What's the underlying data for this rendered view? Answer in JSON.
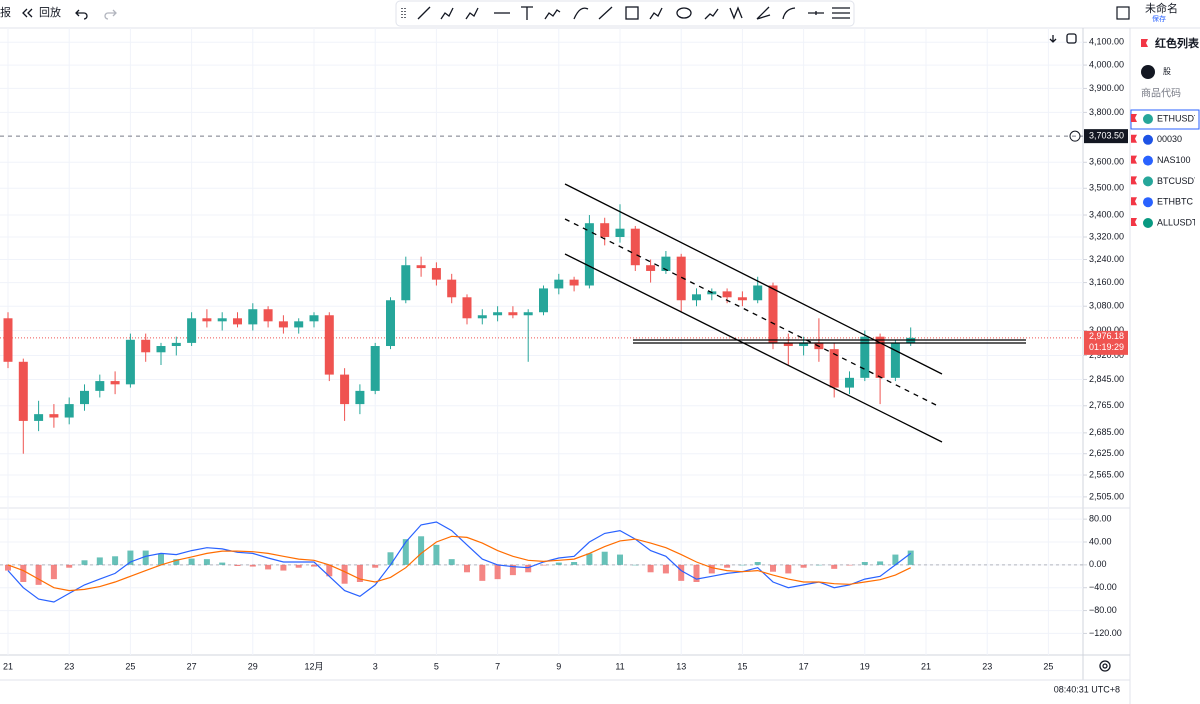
{
  "toolbar": {
    "left": [
      "报",
      "回放"
    ],
    "title": "未命名",
    "save": "保存"
  },
  "watchlist": {
    "title": "红色列表",
    "section": "股",
    "column": "商品代码",
    "symbols": [
      "ETHUSDT",
      "00030",
      "NAS100",
      "BTCUSDT",
      "ETHBTC",
      "ALLUSDT"
    ]
  },
  "status_time": "08:40:31 UTC+8",
  "chart_data": [
    {
      "type": "candlestick",
      "log_scale": true,
      "grid": true,
      "up_color": "#26a69a",
      "down_color": "#ef5350",
      "categories": [
        "21",
        null,
        null,
        null,
        "23",
        null,
        null,
        null,
        "25",
        null,
        null,
        null,
        "27",
        null,
        null,
        null,
        "29",
        null,
        null,
        null,
        "12月",
        null,
        null,
        null,
        "3",
        null,
        null,
        null,
        "5",
        null,
        null,
        null,
        "7",
        null,
        null,
        null,
        "9",
        null,
        null,
        null,
        "11",
        null,
        null,
        null,
        "13",
        null,
        null,
        null,
        "15",
        null,
        null,
        null,
        "17",
        null,
        null,
        null,
        "19",
        null,
        null,
        null,
        "21",
        null,
        null,
        null,
        "23",
        null,
        null,
        null,
        "25",
        null,
        null
      ],
      "open": [
        3040,
        2900,
        2720,
        2740,
        2730,
        2770,
        2810,
        2840,
        2830,
        2970,
        2930,
        2950,
        2960,
        3040,
        3030,
        3040,
        3020,
        3070,
        3030,
        3010,
        3030,
        3050,
        2860,
        2770,
        2810,
        2950,
        3100,
        3220,
        3210,
        3170,
        3110,
        3040,
        3050,
        3060,
        3050,
        3060,
        3140,
        3170,
        3150,
        3370,
        3320,
        3350,
        3220,
        3200,
        3250,
        3100,
        3120,
        3130,
        3110,
        3100,
        3150,
        2960,
        2950,
        2960,
        2940,
        2820,
        2850,
        2980,
        2850,
        2960,
        null,
        null,
        null,
        null,
        null,
        null,
        null,
        null,
        null,
        null,
        null
      ],
      "high": [
        3060,
        2910,
        2780,
        2770,
        2790,
        2830,
        2860,
        2870,
        2990,
        2990,
        2960,
        2980,
        3060,
        3070,
        3060,
        3060,
        3090,
        3080,
        3050,
        3040,
        3060,
        3060,
        2880,
        2830,
        2960,
        3110,
        3250,
        3250,
        3230,
        3190,
        3120,
        3070,
        3080,
        3080,
        3070,
        3150,
        3190,
        3180,
        3400,
        3390,
        3440,
        3360,
        3240,
        3270,
        3260,
        3140,
        3140,
        3140,
        3130,
        3180,
        3160,
        2990,
        2980,
        3040,
        2960,
        2870,
        3000,
        2990,
        2970,
        3010,
        null,
        null,
        null,
        null,
        null,
        null,
        null,
        null,
        null,
        null,
        null
      ],
      "low": [
        2880,
        2625,
        2690,
        2700,
        2710,
        2750,
        2790,
        2800,
        2820,
        2900,
        2890,
        2920,
        2950,
        3010,
        3000,
        3010,
        3000,
        3010,
        2990,
        2990,
        3010,
        2840,
        2720,
        2740,
        2800,
        2940,
        3090,
        3180,
        3150,
        3090,
        3020,
        3020,
        3030,
        3040,
        2900,
        3050,
        3120,
        3130,
        3140,
        3290,
        3300,
        3200,
        3160,
        3190,
        3060,
        3080,
        3100,
        3090,
        3080,
        3090,
        2940,
        2890,
        2920,
        2900,
        2790,
        2800,
        2840,
        2770,
        2840,
        2950,
        null,
        null,
        null,
        null,
        null,
        null,
        null,
        null,
        null,
        null,
        null
      ],
      "close": [
        2900,
        2720,
        2740,
        2730,
        2770,
        2810,
        2840,
        2830,
        2970,
        2930,
        2950,
        2960,
        3040,
        3030,
        3040,
        3020,
        3070,
        3030,
        3010,
        3030,
        3050,
        2860,
        2770,
        2810,
        2950,
        3100,
        3220,
        3210,
        3170,
        3110,
        3040,
        3050,
        3060,
        3050,
        3060,
        3140,
        3170,
        3150,
        3370,
        3320,
        3350,
        3220,
        3200,
        3250,
        3100,
        3120,
        3130,
        3110,
        3100,
        3150,
        2960,
        2950,
        2960,
        2940,
        2820,
        2850,
        2980,
        2850,
        2960,
        2976.18,
        null,
        null,
        null,
        null,
        null,
        null,
        null,
        null,
        null,
        null,
        null
      ],
      "ylim": [
        2475,
        4155
      ],
      "yticks": [
        {
          "value": 4100,
          "label": "4,100.00"
        },
        {
          "value": 4000,
          "label": "4,000.00"
        },
        {
          "value": 3900,
          "label": "3,900.00"
        },
        {
          "value": 3800,
          "label": "3,800.00"
        },
        {
          "value": 3600,
          "label": "3,600.00"
        },
        {
          "value": 3500,
          "label": "3,500.00"
        },
        {
          "value": 3400,
          "label": "3,400.00"
        },
        {
          "value": 3320,
          "label": "3,320.00"
        },
        {
          "value": 3240,
          "label": "3,240.00"
        },
        {
          "value": 3160,
          "label": "3,160.00"
        },
        {
          "value": 3080,
          "label": "3,080.00"
        },
        {
          "value": 3000,
          "label": "3,000.00"
        },
        {
          "value": 2920,
          "label": "2,920.00"
        },
        {
          "value": 2845,
          "label": "2,845.00"
        },
        {
          "value": 2765,
          "label": "2,765.00"
        },
        {
          "value": 2685,
          "label": "2,685.00"
        },
        {
          "value": 2625,
          "label": "2,625.00"
        },
        {
          "value": 2565,
          "label": "2,565.00"
        },
        {
          "value": 2505,
          "label": "2,505.00"
        }
      ],
      "crosshair_price": {
        "value": 3703.5,
        "label": "3,703.50"
      },
      "last_price": {
        "value": 2976.18,
        "label": "2,976.18"
      },
      "countdown": "01:19:29"
    },
    {
      "type": "macd",
      "up_color": "#26a69a",
      "down_color": "#ef5350",
      "histogram": [
        -10,
        -30,
        -35,
        -25,
        -5,
        8,
        13,
        15,
        25,
        25,
        20,
        10,
        11,
        10,
        4,
        -2,
        -3,
        -8,
        -10,
        -5,
        -3,
        -20,
        -33,
        -30,
        -5,
        22,
        45,
        50,
        35,
        10,
        -13,
        -28,
        -25,
        -18,
        -13,
        -1,
        4,
        5,
        20,
        23,
        18,
        0,
        -13,
        -15,
        -28,
        -30,
        -15,
        -5,
        0,
        5,
        -12,
        -15,
        -5,
        0,
        -7,
        -1,
        5,
        6,
        18,
        25
      ],
      "series": [
        {
          "color": "#2962ff",
          "values": [
            -10,
            -40,
            -60,
            -65,
            -50,
            -35,
            -25,
            -15,
            5,
            15,
            20,
            18,
            25,
            30,
            28,
            22,
            20,
            12,
            5,
            5,
            5,
            -20,
            -45,
            -55,
            -35,
            0,
            40,
            70,
            75,
            60,
            35,
            10,
            0,
            -3,
            -5,
            5,
            12,
            15,
            40,
            55,
            60,
            45,
            25,
            15,
            -10,
            -25,
            -20,
            -15,
            -12,
            -5,
            -30,
            -40,
            -35,
            -30,
            -40,
            -35,
            -25,
            -20,
            0,
            20
          ]
        },
        {
          "color": "#ff6d00",
          "values": [
            0,
            -10,
            -25,
            -40,
            -45,
            -43,
            -38,
            -30,
            -20,
            -10,
            0,
            8,
            14,
            20,
            24,
            24,
            23,
            20,
            15,
            10,
            8,
            0,
            -12,
            -25,
            -30,
            -22,
            -5,
            20,
            40,
            50,
            48,
            38,
            25,
            15,
            8,
            6,
            8,
            10,
            20,
            32,
            42,
            45,
            38,
            30,
            18,
            5,
            -5,
            -10,
            -12,
            -10,
            -18,
            -25,
            -30,
            -30,
            -33,
            -34,
            -30,
            -26,
            -18,
            -5
          ]
        }
      ],
      "ylim": [
        -149,
        96
      ],
      "yticks": [
        {
          "value": 80,
          "label": "80.00"
        },
        {
          "value": 40,
          "label": "40.00"
        },
        {
          "value": 0,
          "label": "0.00"
        },
        {
          "value": -40,
          "label": "−40.00"
        },
        {
          "value": -80,
          "label": "−80.00"
        },
        {
          "value": -120,
          "label": "−120.00"
        }
      ]
    }
  ]
}
